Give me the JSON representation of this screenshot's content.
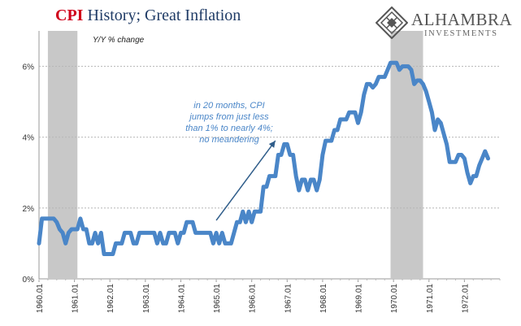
{
  "header": {
    "title_accent": "CPI",
    "title_rest": " History; Great Inflation",
    "logo_name": "ALHAMBRA",
    "logo_sub": "INVESTMENTS",
    "logo_icon": "diamond-lattice-icon"
  },
  "colors": {
    "series": "#4a86c8",
    "recession": "#c8c8c8",
    "title_accent": "#d0021b",
    "title_text": "#1f3b66",
    "annotation": "#4a86c8"
  },
  "chart_data": {
    "type": "line",
    "title": "CPI History; Great Inflation",
    "ylabel": "Y/Y % change",
    "xlabel": "",
    "ylim": [
      0,
      7
    ],
    "yticks": [
      0,
      2,
      4,
      6
    ],
    "ytick_labels": [
      "0%",
      "2%",
      "4%",
      "6%"
    ],
    "xlim": [
      "1960.01",
      "1973.01"
    ],
    "xtick_labels": [
      "1960.01",
      "1961.01",
      "1962.01",
      "1963.01",
      "1964.01",
      "1965.01",
      "1966.01",
      "1967.01",
      "1968.01",
      "1969.01",
      "1970.01",
      "1971.01",
      "1972.01"
    ],
    "grid": true,
    "recessions": [
      {
        "start": "1960.04",
        "end": "1961.02"
      },
      {
        "start": "1969.12",
        "end": "1970.11"
      }
    ],
    "annotation": {
      "lines": [
        "in 20 months, CPI",
        "jumps from just less",
        "than 1% to nearly 4%;",
        "no meandering"
      ],
      "arrow_from": {
        "x": "1965.01",
        "y": 1.65
      },
      "arrow_to": {
        "x": "1966.09",
        "y": 3.9
      }
    },
    "series": [
      {
        "name": "CPI Y/Y % change",
        "start": "1960.01",
        "values": [
          1.0,
          1.7,
          1.7,
          1.7,
          1.7,
          1.7,
          1.6,
          1.4,
          1.3,
          1.0,
          1.3,
          1.4,
          1.4,
          1.4,
          1.7,
          1.4,
          1.4,
          1.0,
          1.0,
          1.3,
          1.0,
          1.3,
          0.7,
          0.7,
          0.7,
          0.7,
          1.0,
          1.0,
          1.0,
          1.3,
          1.3,
          1.3,
          1.0,
          1.0,
          1.3,
          1.3,
          1.3,
          1.3,
          1.3,
          1.3,
          1.0,
          1.3,
          1.0,
          1.0,
          1.3,
          1.3,
          1.3,
          1.0,
          1.3,
          1.3,
          1.6,
          1.6,
          1.6,
          1.3,
          1.3,
          1.3,
          1.3,
          1.3,
          1.3,
          1.0,
          1.3,
          1.0,
          1.3,
          1.0,
          1.0,
          1.0,
          1.3,
          1.6,
          1.6,
          1.9,
          1.6,
          1.9,
          1.6,
          1.9,
          1.9,
          1.9,
          2.6,
          2.6,
          2.9,
          2.9,
          2.9,
          3.5,
          3.5,
          3.8,
          3.8,
          3.5,
          3.5,
          2.9,
          2.5,
          2.8,
          2.8,
          2.5,
          2.8,
          2.8,
          2.5,
          2.8,
          3.5,
          3.9,
          3.9,
          3.9,
          4.2,
          4.2,
          4.5,
          4.5,
          4.5,
          4.7,
          4.7,
          4.7,
          4.4,
          4.7,
          5.2,
          5.5,
          5.5,
          5.4,
          5.5,
          5.7,
          5.7,
          5.7,
          5.9,
          6.1,
          6.1,
          6.1,
          5.9,
          6.0,
          6.0,
          6.0,
          5.9,
          5.5,
          5.6,
          5.6,
          5.5,
          5.3,
          5.0,
          4.7,
          4.2,
          4.5,
          4.4,
          4.1,
          3.8,
          3.3,
          3.3,
          3.3,
          3.5,
          3.5,
          3.4,
          3.0,
          2.7,
          2.9,
          2.9,
          3.2,
          3.4,
          3.6,
          3.4
        ]
      }
    ]
  }
}
